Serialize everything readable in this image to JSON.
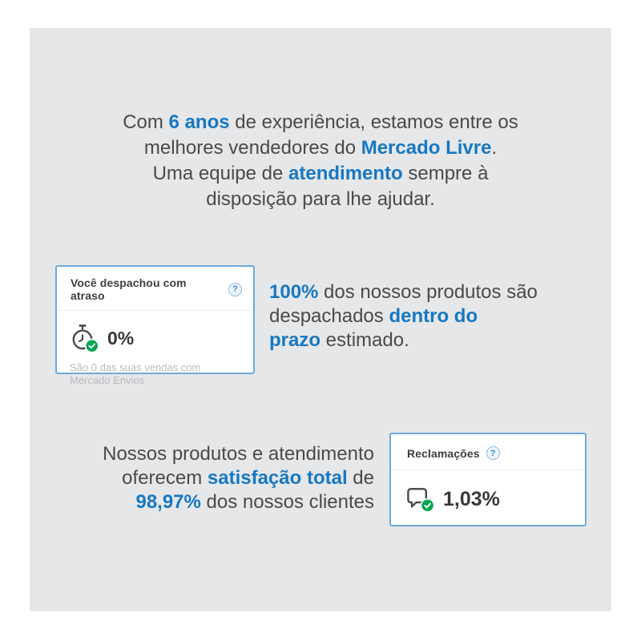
{
  "colors": {
    "accent_blue": "#1778c2",
    "panel_background": "#e6e7e9",
    "card_border": "#6fa9dd",
    "success_green": "#00a650",
    "body_text": "#4a4a4a",
    "muted_text": "#b7babc"
  },
  "intro": {
    "lines": [
      [
        {
          "text": "Com ",
          "accent": false
        },
        {
          "text": "6 anos",
          "accent": true
        },
        {
          "text": " de experiência, estamos entre os",
          "accent": false
        }
      ],
      [
        {
          "text": "melhores vendedores do ",
          "accent": false
        },
        {
          "text": "Mercado Livre",
          "accent": true
        },
        {
          "text": ".",
          "accent": false
        }
      ],
      [
        {
          "text": "Uma equipe de ",
          "accent": false
        },
        {
          "text": "atendimento",
          "accent": true
        },
        {
          "text": " sempre à",
          "accent": false
        }
      ],
      [
        {
          "text": "disposição para lhe ajudar.",
          "accent": false
        }
      ]
    ]
  },
  "shipping_card": {
    "title": "Você despachou com atraso",
    "help": "?",
    "icon": "stopwatch-check-icon",
    "value": "0%",
    "subtitle": "São 0 das suas vendas com Mercado Envios"
  },
  "shipping_claim": {
    "lines": [
      [
        {
          "text": "100%",
          "accent": true
        },
        {
          "text": " dos nossos produtos são",
          "accent": false
        }
      ],
      [
        {
          "text": "despachados ",
          "accent": false
        },
        {
          "text": "dentro do",
          "accent": true
        }
      ],
      [
        {
          "text": "prazo",
          "accent": true
        },
        {
          "text": " estimado.",
          "accent": false
        }
      ]
    ]
  },
  "satisfaction_claim": {
    "lines": [
      [
        {
          "text": "Nossos produtos e atendimento",
          "accent": false
        }
      ],
      [
        {
          "text": "oferecem ",
          "accent": false
        },
        {
          "text": "satisfação total",
          "accent": true
        },
        {
          "text": " de",
          "accent": false
        }
      ],
      [
        {
          "text": "98,97%",
          "accent": true
        },
        {
          "text": " dos nossos clientes",
          "accent": false
        }
      ]
    ]
  },
  "claims_card": {
    "title": "Reclamações",
    "help": "?",
    "icon": "chat-bubble-check-icon",
    "value": "1,03%"
  }
}
